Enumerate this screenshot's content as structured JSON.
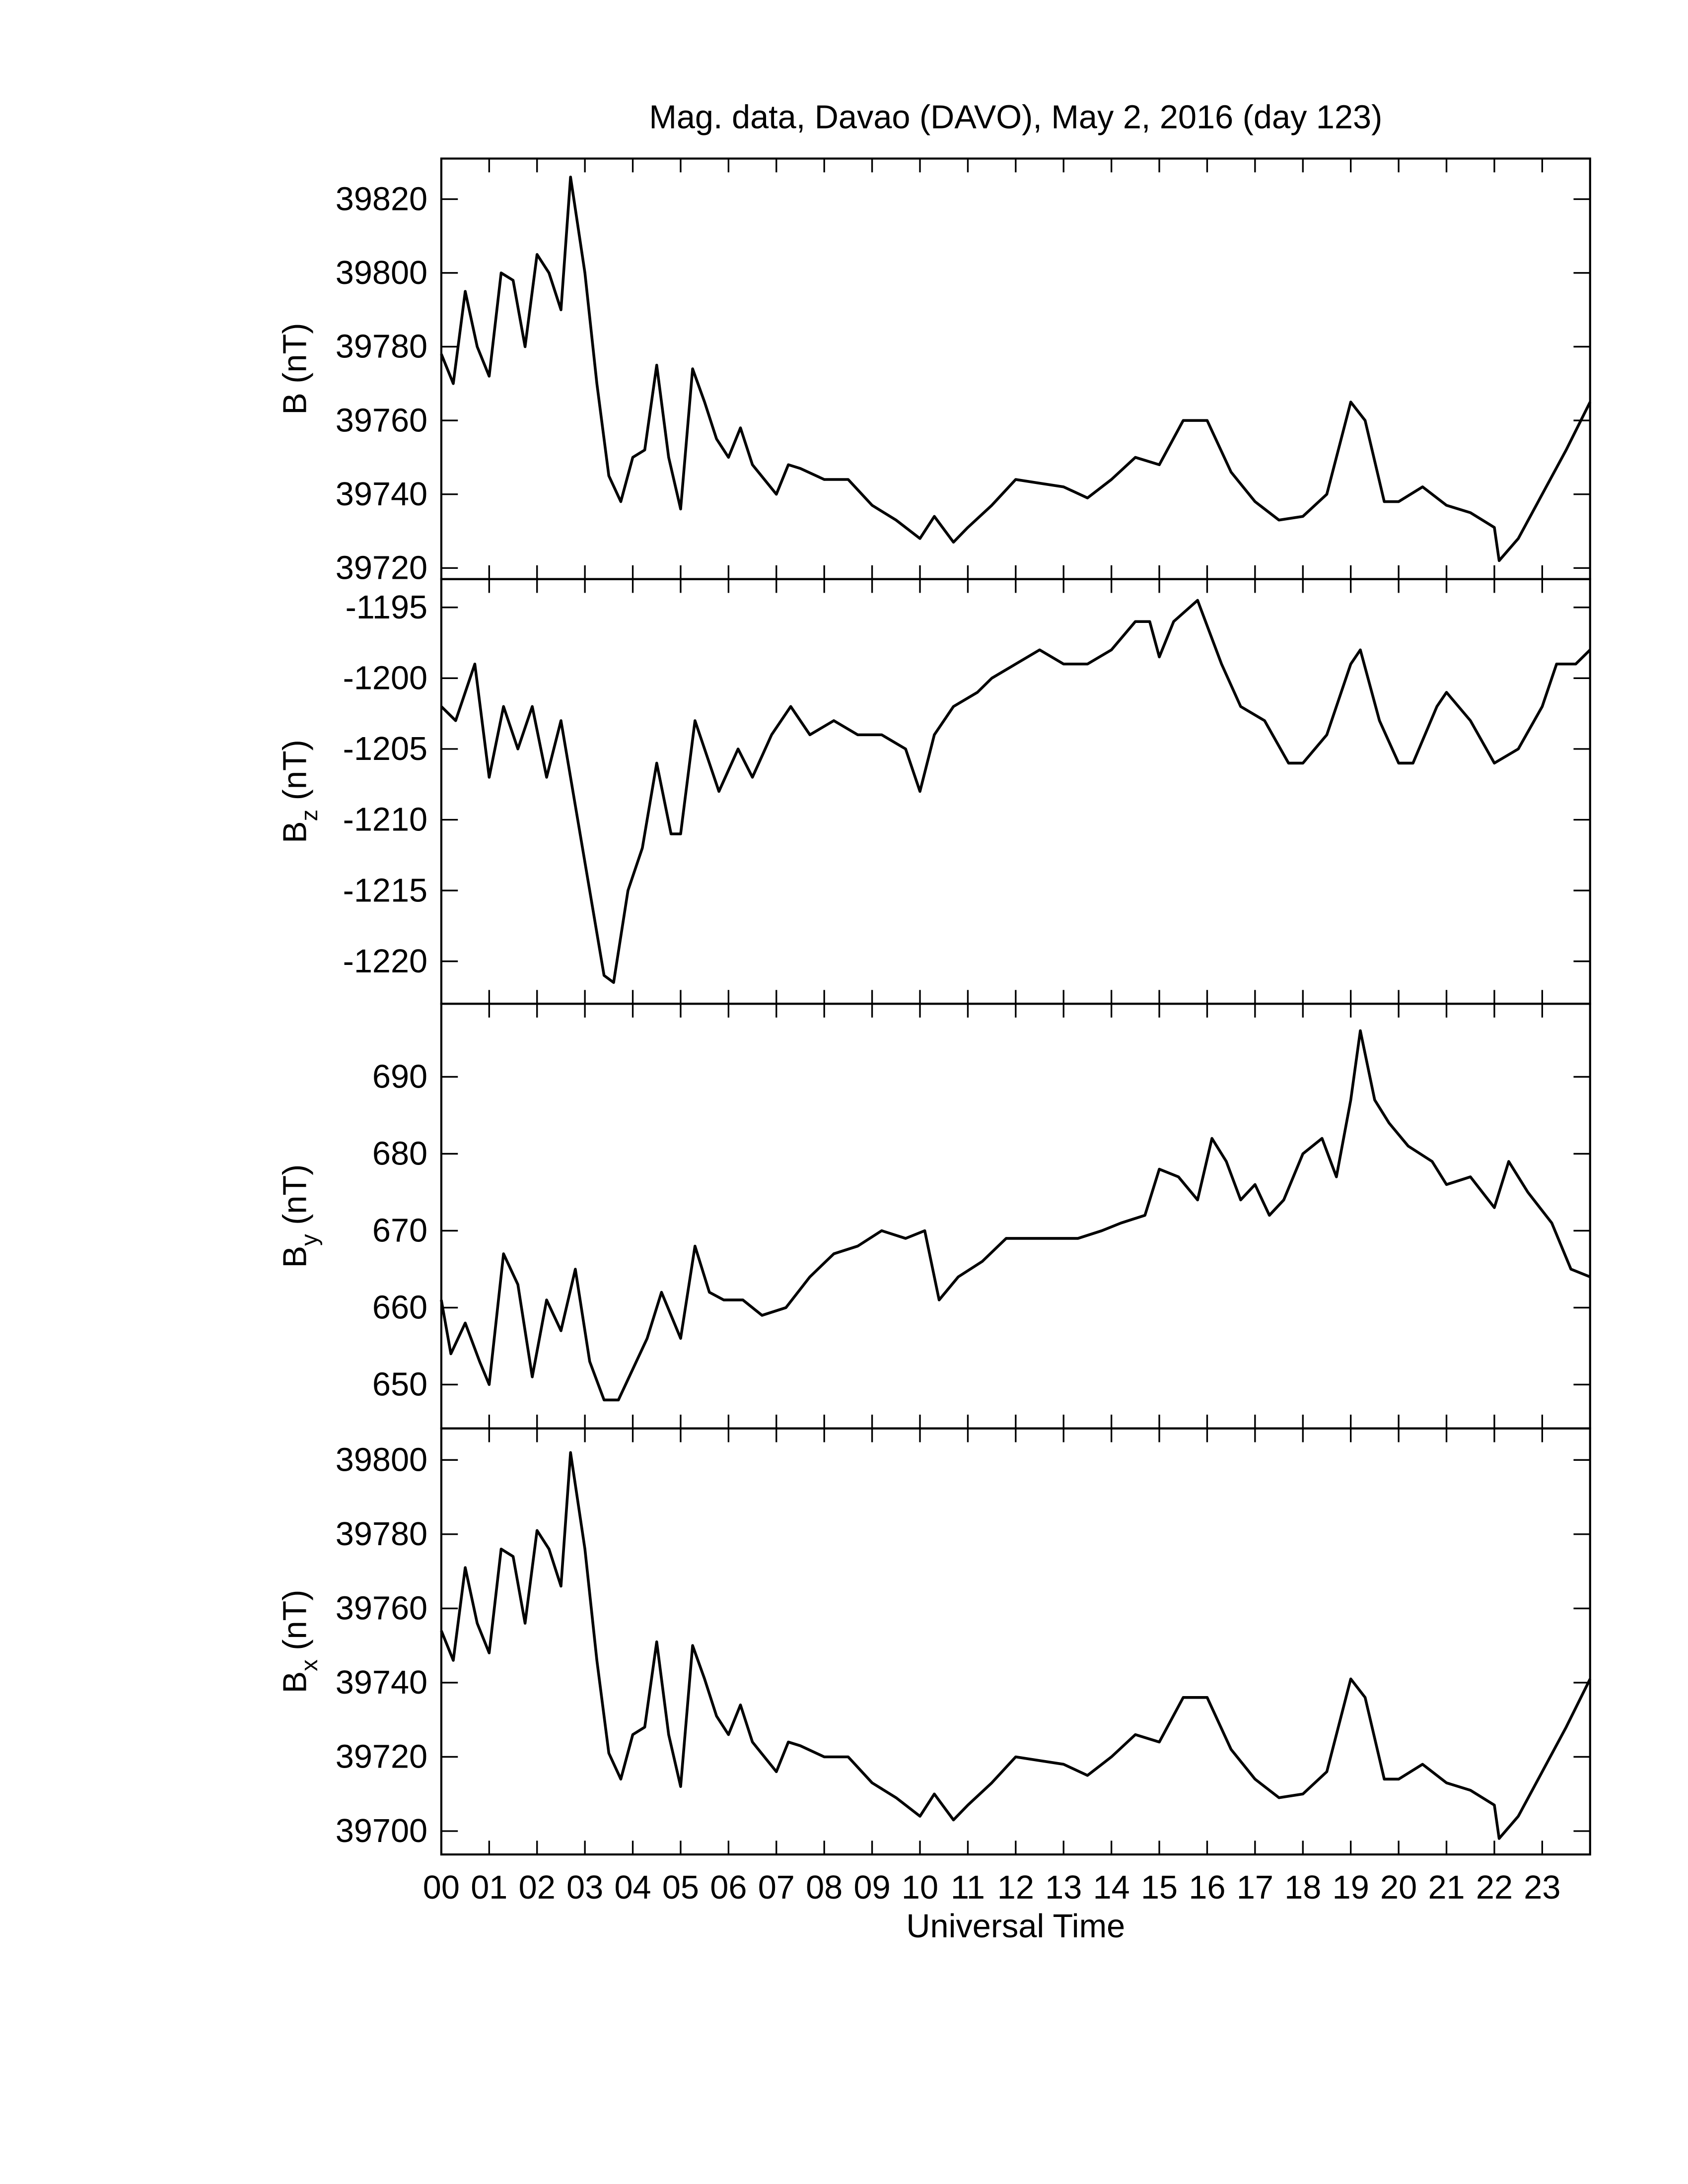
{
  "chart_data": [
    {
      "type": "line",
      "title": "Mag. data, Davao (DAVO), May 2, 2016 (day 123)",
      "ylabel": "B (nT)",
      "color": "#000000",
      "xlim": [
        0,
        24
      ],
      "ylim": [
        39717,
        39831
      ],
      "yticks": [
        39720,
        39740,
        39760,
        39780,
        39800,
        39820
      ],
      "x": [
        0,
        0.25,
        0.5,
        0.75,
        1,
        1.25,
        1.5,
        1.75,
        2,
        2.25,
        2.5,
        2.7,
        3,
        3.25,
        3.5,
        3.75,
        4,
        4.25,
        4.5,
        4.75,
        5,
        5.25,
        5.5,
        5.75,
        6,
        6.25,
        6.5,
        7,
        7.25,
        7.5,
        8,
        8.5,
        9,
        9.5,
        10,
        10.3,
        10.7,
        11,
        11.5,
        12,
        12.5,
        13,
        13.5,
        14,
        14.5,
        15,
        15.5,
        16,
        16.5,
        17,
        17.5,
        18,
        18.5,
        19,
        19.3,
        19.7,
        20,
        20.5,
        21,
        21.5,
        22,
        22.1,
        22.5,
        23,
        23.5,
        24
      ],
      "values": [
        39778,
        39770,
        39795,
        39780,
        39772,
        39800,
        39798,
        39780,
        39805,
        39800,
        39790,
        39826,
        39800,
        39770,
        39745,
        39738,
        39750,
        39752,
        39775,
        39750,
        39736,
        39774,
        39765,
        39755,
        39750,
        39758,
        39748,
        39740,
        39748,
        39747,
        39744,
        39744,
        39737,
        39733,
        39728,
        39734,
        39727,
        39731,
        39737,
        39744,
        39743,
        39742,
        39739,
        39744,
        39750,
        39748,
        39760,
        39760,
        39746,
        39738,
        39733,
        39734,
        39740,
        39765,
        39760,
        39738,
        39738,
        39742,
        39737,
        39735,
        39731,
        39722,
        39728,
        39740,
        39752,
        39765
      ]
    },
    {
      "type": "line",
      "ylabel": "Bz (nT)",
      "color": "#000000",
      "xlim": [
        0,
        24
      ],
      "ylim": [
        -1223,
        -1193
      ],
      "yticks": [
        -1220,
        -1215,
        -1210,
        -1205,
        -1200,
        -1195
      ],
      "x": [
        0,
        0.3,
        0.7,
        1,
        1.3,
        1.6,
        1.9,
        2.2,
        2.5,
        2.8,
        3.1,
        3.4,
        3.6,
        3.9,
        4.2,
        4.5,
        4.8,
        5,
        5.3,
        5.6,
        5.8,
        6.2,
        6.5,
        6.9,
        7.3,
        7.7,
        8.2,
        8.7,
        9.2,
        9.7,
        10,
        10.3,
        10.7,
        11.2,
        11.5,
        12,
        12.5,
        13,
        13.5,
        14,
        14.5,
        14.8,
        15,
        15.3,
        15.8,
        16.3,
        16.7,
        17.2,
        17.7,
        18,
        18.5,
        19,
        19.2,
        19.6,
        20,
        20.3,
        20.8,
        21,
        21.5,
        22,
        22.5,
        23,
        23.3,
        23.7,
        24
      ],
      "values": [
        -1202,
        -1203,
        -1199,
        -1207,
        -1202,
        -1205,
        -1202,
        -1207,
        -1203,
        -1209,
        -1215,
        -1221,
        -1221.5,
        -1215,
        -1212,
        -1206,
        -1211,
        -1211,
        -1203,
        -1206,
        -1208,
        -1205,
        -1207,
        -1204,
        -1202,
        -1204,
        -1203,
        -1204,
        -1204,
        -1205,
        -1208,
        -1204,
        -1202,
        -1201,
        -1200,
        -1199,
        -1198,
        -1199,
        -1199,
        -1198,
        -1196,
        -1196,
        -1198.5,
        -1196,
        -1194.5,
        -1199,
        -1202,
        -1203,
        -1206,
        -1206,
        -1204,
        -1199,
        -1198,
        -1203,
        -1206,
        -1206,
        -1202,
        -1201,
        -1203,
        -1206,
        -1205,
        -1202,
        -1199,
        -1199,
        -1198
      ]
    },
    {
      "type": "line",
      "ylabel": "By (nT)",
      "color": "#000000",
      "xlim": [
        0,
        24
      ],
      "ylim": [
        644.3,
        699.5
      ],
      "yticks": [
        650,
        660,
        670,
        680,
        690
      ],
      "x": [
        0,
        0.2,
        0.5,
        0.8,
        1,
        1.3,
        1.6,
        1.9,
        2.2,
        2.5,
        2.8,
        3.1,
        3.4,
        3.7,
        4,
        4.3,
        4.6,
        5,
        5.3,
        5.6,
        5.9,
        6.3,
        6.7,
        7.2,
        7.7,
        8.2,
        8.7,
        9.2,
        9.7,
        10.1,
        10.4,
        10.8,
        11.3,
        11.8,
        12.3,
        12.8,
        13.3,
        13.8,
        14.2,
        14.7,
        15,
        15.4,
        15.8,
        16.1,
        16.4,
        16.7,
        17,
        17.3,
        17.6,
        18,
        18.4,
        18.7,
        19,
        19.2,
        19.5,
        19.8,
        20.2,
        20.7,
        21,
        21.5,
        22,
        22.3,
        22.7,
        23.2,
        23.6,
        24
      ],
      "values": [
        661,
        654,
        658,
        653,
        650,
        667,
        663,
        651,
        661,
        657,
        665,
        653,
        648,
        648,
        652,
        656,
        662,
        656,
        668,
        662,
        661,
        661,
        659,
        660,
        664,
        667,
        668,
        670,
        669,
        670,
        661,
        664,
        666,
        669,
        669,
        669,
        669,
        670,
        671,
        672,
        678,
        677,
        674,
        682,
        679,
        674,
        676,
        672,
        674,
        680,
        682,
        677,
        687,
        696,
        687,
        684,
        681,
        679,
        676,
        677,
        673,
        679,
        675,
        671,
        665,
        664
      ]
    },
    {
      "type": "line",
      "ylabel": "Bx (nT)",
      "xlabel": "Universal Time",
      "color": "#000000",
      "xlim": [
        0,
        24
      ],
      "ylim": [
        39693.7,
        39808.5
      ],
      "yticks": [
        39700,
        39720,
        39740,
        39760,
        39780,
        39800
      ],
      "xticks": [
        {
          "value": 0,
          "label": "00"
        },
        {
          "value": 1,
          "label": "01"
        },
        {
          "value": 2,
          "label": "02"
        },
        {
          "value": 3,
          "label": "03"
        },
        {
          "value": 4,
          "label": "04"
        },
        {
          "value": 5,
          "label": "05"
        },
        {
          "value": 6,
          "label": "06"
        },
        {
          "value": 7,
          "label": "07"
        },
        {
          "value": 8,
          "label": "08"
        },
        {
          "value": 9,
          "label": "09"
        },
        10,
        11,
        12,
        13,
        14,
        15,
        16,
        17,
        18,
        19,
        20,
        21,
        22,
        23
      ],
      "x": [
        0,
        0.25,
        0.5,
        0.75,
        1,
        1.25,
        1.5,
        1.75,
        2,
        2.25,
        2.5,
        2.7,
        3,
        3.25,
        3.5,
        3.75,
        4,
        4.25,
        4.5,
        4.75,
        5,
        5.25,
        5.5,
        5.75,
        6,
        6.25,
        6.5,
        7,
        7.25,
        7.5,
        8,
        8.5,
        9,
        9.5,
        10,
        10.3,
        10.7,
        11,
        11.5,
        12,
        12.5,
        13,
        13.5,
        14,
        14.5,
        15,
        15.5,
        16,
        16.5,
        17,
        17.5,
        18,
        18.5,
        19,
        19.3,
        19.7,
        20,
        20.5,
        21,
        21.5,
        22,
        22.1,
        22.5,
        23,
        23.5,
        24
      ],
      "values": [
        39754,
        39746,
        39771,
        39756,
        39748,
        39776,
        39774,
        39756,
        39781,
        39776,
        39766,
        39802,
        39776,
        39746,
        39721,
        39714,
        39726,
        39728,
        39751,
        39726,
        39712,
        39750,
        39741,
        39731,
        39726,
        39734,
        39724,
        39716,
        39724,
        39723,
        39720,
        39720,
        39713,
        39709,
        39704,
        39710,
        39703,
        39707,
        39713,
        39720,
        39719,
        39718,
        39715,
        39720,
        39726,
        39724,
        39736,
        39736,
        39722,
        39714,
        39709,
        39710,
        39716,
        39741,
        39736,
        39714,
        39714,
        39718,
        39713,
        39711,
        39707,
        39698,
        39704,
        39716,
        39728,
        39741
      ]
    }
  ]
}
